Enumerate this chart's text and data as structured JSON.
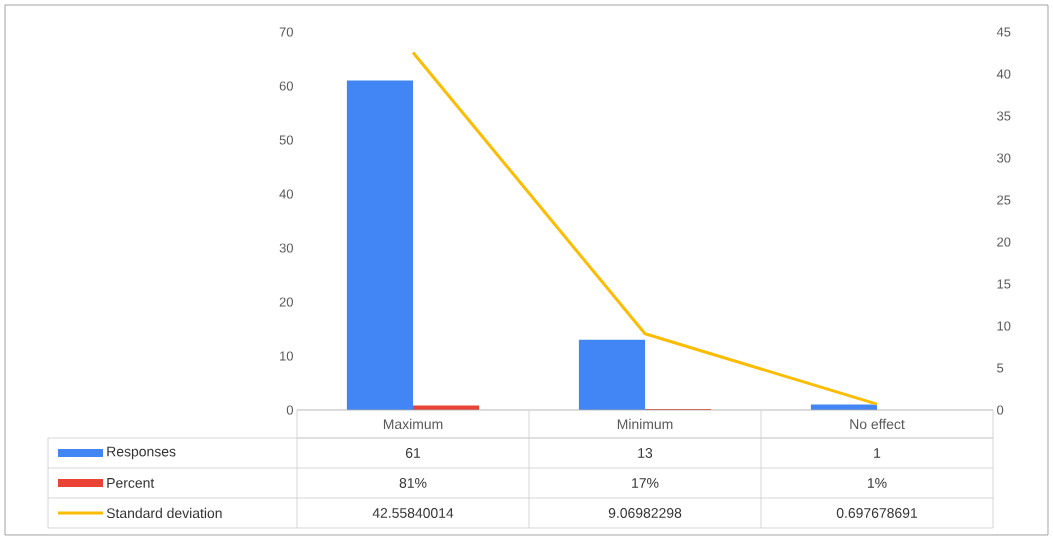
{
  "chart_data": {
    "type": "bar",
    "categories": [
      "Maximum",
      "Minimum",
      "No effect"
    ],
    "series": [
      {
        "name": "Responses",
        "color": "#4285f4",
        "values": [
          61,
          13,
          1
        ],
        "value_labels": [
          "61",
          "13",
          "1"
        ]
      },
      {
        "name": "Percent",
        "color": "#ea4335",
        "values": [
          0.81,
          0.17,
          0.01
        ],
        "value_labels": [
          "81%",
          "17%",
          "1%"
        ]
      },
      {
        "name": "Standard deviation",
        "type": "line",
        "axis": "y2",
        "color": "#fbbc04",
        "values": [
          42.55840014,
          9.06982298,
          0.697678691
        ],
        "value_labels": [
          "42.55840014",
          "9.06982298",
          "0.697678691"
        ]
      }
    ],
    "ylim": [
      0,
      70
    ],
    "yticks": [
      0,
      10,
      20,
      30,
      40,
      50,
      60,
      70
    ],
    "y2lim": [
      0,
      45
    ],
    "y2ticks": [
      0,
      5,
      10,
      15,
      20,
      25,
      30,
      35,
      40,
      45
    ],
    "legend": "bottom"
  }
}
